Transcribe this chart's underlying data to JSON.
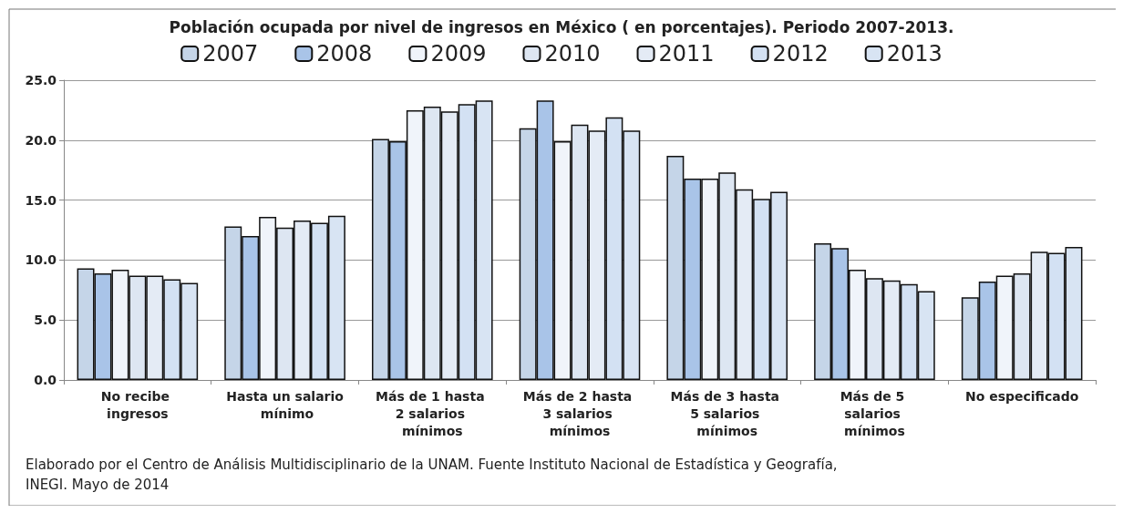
{
  "chart_data": {
    "type": "bar",
    "title": "Población ocupada por nivel de ingresos en México ( en porcentajes). Periodo 2007-2013.",
    "categories": [
      "No recibe ingresos",
      "Hasta un salario mínimo",
      "Más de 1 hasta 2 salarios mínimos",
      "Más de 2 hasta 3 salarios mínimos",
      "Más de 3 hasta 5 salarios mínimos",
      "Más de 5 salarios mínimos",
      "No especificado"
    ],
    "series": [
      {
        "name": "2007",
        "color": "#c5d5e8",
        "values": [
          9.3,
          12.8,
          20.1,
          21.0,
          18.7,
          11.4,
          6.9
        ]
      },
      {
        "name": "2008",
        "color": "#a9c4e8",
        "values": [
          8.9,
          12.0,
          19.9,
          23.3,
          16.8,
          11.0,
          8.2
        ]
      },
      {
        "name": "2009",
        "color": "#f0f4fa",
        "values": [
          9.2,
          13.6,
          22.5,
          19.9,
          16.8,
          9.2,
          8.7
        ]
      },
      {
        "name": "2010",
        "color": "#dde6f2",
        "values": [
          8.7,
          12.7,
          22.8,
          21.3,
          17.3,
          8.5,
          8.9
        ]
      },
      {
        "name": "2011",
        "color": "#e4ebf5",
        "values": [
          8.7,
          13.3,
          22.4,
          20.8,
          15.9,
          8.3,
          10.7
        ]
      },
      {
        "name": "2012",
        "color": "#d3e1f3",
        "values": [
          8.4,
          13.1,
          23.0,
          21.9,
          15.1,
          8.0,
          10.6
        ]
      },
      {
        "name": "2013",
        "color": "#d8e4f3",
        "values": [
          8.1,
          13.7,
          23.3,
          20.8,
          15.7,
          7.4,
          11.1
        ]
      }
    ],
    "ylim": [
      0,
      25
    ],
    "yticks": [
      {
        "value": 0,
        "label": "0.0"
      },
      {
        "value": 5,
        "label": "5.0"
      },
      {
        "value": 10,
        "label": "10.0"
      },
      {
        "value": 15,
        "label": "15.0"
      },
      {
        "value": 20,
        "label": "20.0"
      },
      {
        "value": 25,
        "label": "25.0"
      }
    ],
    "grid": "y",
    "legend": "top",
    "annotations": [
      "Elaborado por el Centro de Análisis Multidisciplinario de la UNAM. Fuente Instituto Nacional de Estadística y Geografía, INEGI. Mayo de 2014"
    ]
  }
}
